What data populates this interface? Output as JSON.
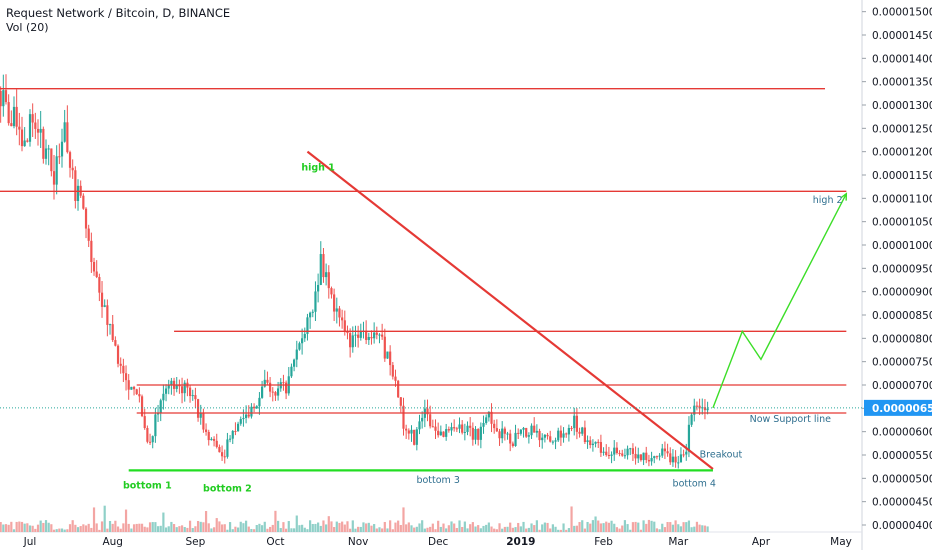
{
  "header": {
    "title": "Request Network / Bitcoin, D, BINANCE",
    "vol": "Vol (20)"
  },
  "colors": {
    "up": "#26a69a",
    "down": "#ef5350",
    "vol_up": "#8fd0c8",
    "vol_down": "#f3a5a3",
    "level": "#e53935",
    "support": "#22dd22",
    "projection": "#3cde28",
    "label_green": "#22cc22",
    "label_blue": "#2f6f8f",
    "price_tag": "#2196f3"
  },
  "chart_data": {
    "type": "candlestick",
    "title": "Request Network / Bitcoin, D, BINANCE",
    "y_axis": {
      "ticks": [
        "0.00001500",
        "0.00001450",
        "0.00001400",
        "0.00001350",
        "0.00001300",
        "0.00001250",
        "0.00001200",
        "0.00001150",
        "0.00001100",
        "0.00001050",
        "0.00001000",
        "0.00000950",
        "0.00000900",
        "0.00000850",
        "0.00000800",
        "0.00000750",
        "0.00000700",
        "0.00000650",
        "0.00000600",
        "0.00000550",
        "0.00000500",
        "0.00000450",
        "0.00000400"
      ],
      "range": [
        3.85e-06,
        1.525e-05
      ]
    },
    "x_axis": {
      "ticks": [
        "Jul",
        "Aug",
        "Sep",
        "Oct",
        "Nov",
        "Dec",
        "2019",
        "Feb",
        "Mar",
        "Apr",
        "May"
      ],
      "tick_dates": [
        "2018-07-01",
        "2018-08-01",
        "2018-09-01",
        "2018-10-01",
        "2018-11-01",
        "2018-12-01",
        "2019-01-01",
        "2019-02-01",
        "2019-03-01",
        "2019-04-01",
        "2019-05-01"
      ]
    },
    "last_price": "0.00000651",
    "price_anchors": [
      [
        "2018-06-20",
        1.33e-05
      ],
      [
        "2018-06-24",
        1.28e-05
      ],
      [
        "2018-06-28",
        1.23e-05
      ],
      [
        "2018-07-02",
        1.27e-05
      ],
      [
        "2018-07-06",
        1.21e-05
      ],
      [
        "2018-07-10",
        1.15e-05
      ],
      [
        "2018-07-14",
        1.26e-05
      ],
      [
        "2018-07-18",
        1.12e-05
      ],
      [
        "2018-07-22",
        1.05e-05
      ],
      [
        "2018-07-26",
        9.2e-06
      ],
      [
        "2018-07-30",
        8.4e-06
      ],
      [
        "2018-08-03",
        7.6e-06
      ],
      [
        "2018-08-07",
        7e-06
      ],
      [
        "2018-08-10",
        6.9e-06
      ],
      [
        "2018-08-14",
        5.7e-06
      ],
      [
        "2018-08-18",
        6.4e-06
      ],
      [
        "2018-08-22",
        6.9e-06
      ],
      [
        "2018-08-26",
        7e-06
      ],
      [
        "2018-08-30",
        6.9e-06
      ],
      [
        "2018-09-03",
        6.3e-06
      ],
      [
        "2018-09-07",
        5.8e-06
      ],
      [
        "2018-09-11",
        5.4e-06
      ],
      [
        "2018-09-15",
        6e-06
      ],
      [
        "2018-09-19",
        6.4e-06
      ],
      [
        "2018-09-23",
        6.5e-06
      ],
      [
        "2018-09-27",
        7e-06
      ],
      [
        "2018-10-01",
        6.9e-06
      ],
      [
        "2018-10-05",
        6.9e-06
      ],
      [
        "2018-10-09",
        7.6e-06
      ],
      [
        "2018-10-13",
        8.5e-06
      ],
      [
        "2018-10-16",
        8.9e-06
      ],
      [
        "2018-10-18",
        9.8e-06
      ],
      [
        "2018-10-21",
        8.9e-06
      ],
      [
        "2018-10-25",
        8.3e-06
      ],
      [
        "2018-10-29",
        7.9e-06
      ],
      [
        "2018-11-02",
        8.3e-06
      ],
      [
        "2018-11-06",
        8e-06
      ],
      [
        "2018-11-10",
        7.9e-06
      ],
      [
        "2018-11-14",
        7.2e-06
      ],
      [
        "2018-11-18",
        6.2e-06
      ],
      [
        "2018-11-22",
        5.8e-06
      ],
      [
        "2018-11-26",
        6.4e-06
      ],
      [
        "2018-11-30",
        6e-06
      ],
      [
        "2018-12-04",
        6e-06
      ],
      [
        "2018-12-08",
        6.1e-06
      ],
      [
        "2018-12-12",
        6e-06
      ],
      [
        "2018-12-16",
        5.9e-06
      ],
      [
        "2018-12-20",
        6.3e-06
      ],
      [
        "2018-12-24",
        6e-06
      ],
      [
        "2018-12-28",
        5.8e-06
      ],
      [
        "2019-01-01",
        5.9e-06
      ],
      [
        "2019-01-05",
        6.1e-06
      ],
      [
        "2019-01-09",
        5.8e-06
      ],
      [
        "2019-01-13",
        5.9e-06
      ],
      [
        "2019-01-17",
        6e-06
      ],
      [
        "2019-01-21",
        6.2e-06
      ],
      [
        "2019-01-25",
        5.9e-06
      ],
      [
        "2019-01-29",
        5.7e-06
      ],
      [
        "2019-02-02",
        5.6e-06
      ],
      [
        "2019-02-06",
        5.5e-06
      ],
      [
        "2019-02-10",
        5.6e-06
      ],
      [
        "2019-02-14",
        5.5e-06
      ],
      [
        "2019-02-18",
        5.4e-06
      ],
      [
        "2019-02-22",
        5.6e-06
      ],
      [
        "2019-02-26",
        5.4e-06
      ],
      [
        "2019-03-01",
        5.4e-06
      ],
      [
        "2019-03-04",
        5.6e-06
      ],
      [
        "2019-03-06",
        6.4e-06
      ],
      [
        "2019-03-09",
        6.6e-06
      ],
      [
        "2019-03-12",
        6.51e-06
      ]
    ],
    "lines": [
      {
        "kind": "resistance",
        "from": [
          "2018-06-19",
          1.115e-05
        ],
        "to": [
          "2019-05-03",
          1.115e-05
        ]
      },
      {
        "kind": "resistance",
        "from": [
          "2018-06-19",
          1.335e-05
        ],
        "to": [
          "2019-04-25",
          1.335e-05
        ]
      },
      {
        "kind": "resistance",
        "from": [
          "2018-08-24",
          8.15e-06
        ],
        "to": [
          "2019-05-03",
          8.15e-06
        ]
      },
      {
        "kind": "resistance",
        "from": [
          "2018-08-10",
          7e-06
        ],
        "to": [
          "2019-05-03",
          7e-06
        ]
      },
      {
        "kind": "resistance",
        "from": [
          "2018-08-10",
          6.4e-06
        ],
        "to": [
          "2019-05-03",
          6.4e-06
        ]
      },
      {
        "kind": "downtrend",
        "from": [
          "2018-10-13",
          1.2e-05
        ],
        "to": [
          "2019-03-14",
          5.2e-06
        ]
      },
      {
        "kind": "support",
        "from": [
          "2018-08-07",
          5.17e-06
        ],
        "to": [
          "2019-03-14",
          5.17e-06
        ]
      }
    ],
    "projection": [
      [
        "2019-03-14",
        6.51e-06
      ],
      [
        "2019-03-25",
        8.15e-06
      ],
      [
        "2019-04-01",
        7.55e-06
      ],
      [
        "2019-05-03",
        1.11e-05
      ]
    ],
    "annotations": [
      {
        "text": "high 1",
        "date": "2018-10-17",
        "price": 1.16e-05,
        "color": "label_green"
      },
      {
        "text": "bottom 1",
        "date": "2018-08-14",
        "price": 4.78e-06,
        "color": "label_green"
      },
      {
        "text": "bottom 2",
        "date": "2018-09-13",
        "price": 4.72e-06,
        "color": "label_green"
      },
      {
        "text": "bottom 3",
        "date": "2018-12-01",
        "price": 4.9e-06,
        "color": "label_blue"
      },
      {
        "text": "bottom 4",
        "date": "2019-03-07",
        "price": 4.83e-06,
        "color": "label_blue"
      },
      {
        "text": "high 2",
        "date": "2019-04-26",
        "price": 1.09e-05,
        "color": "label_blue"
      },
      {
        "text": "Breakout",
        "date": "2019-03-17",
        "price": 5.45e-06,
        "color": "label_blue"
      },
      {
        "text": "Now Support line",
        "date": "2019-04-12",
        "price": 6.21e-06,
        "color": "label_blue"
      }
    ]
  }
}
